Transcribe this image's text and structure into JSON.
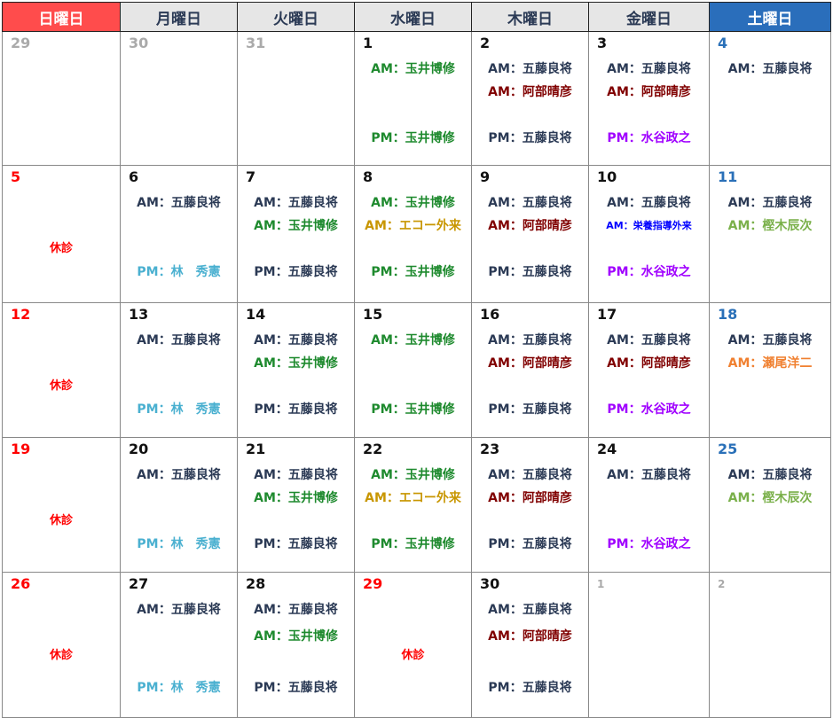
{
  "headers": [
    {
      "label": "日曜日",
      "type": "sun"
    },
    {
      "label": "月曜日",
      "type": ""
    },
    {
      "label": "火曜日",
      "type": ""
    },
    {
      "label": "水曜日",
      "type": ""
    },
    {
      "label": "木曜日",
      "type": ""
    },
    {
      "label": "金曜日",
      "type": ""
    },
    {
      "label": "土曜日",
      "type": "sat"
    }
  ],
  "colors": {
    "navy": "#2b3a55",
    "green": "#1e8a2e",
    "maroon": "#800000",
    "purple": "#a000ff",
    "blue": "#0000ff",
    "olive": "#7ab04a",
    "orange": "#f08030",
    "gold": "#c89600",
    "sky": "#4ab0d0",
    "red": "#ff0000",
    "satblue": "#2a70b8",
    "gray": "#aaaaaa",
    "black": "#111111"
  },
  "weeks": [
    [
      {
        "d": "29",
        "c": "gray"
      },
      {
        "d": "30",
        "c": "gray"
      },
      {
        "d": "31",
        "c": "gray"
      },
      {
        "d": "1",
        "c": "black",
        "l": [
          [
            "AM：玉井博修",
            "green"
          ],
          null,
          [
            "PM：玉井博修",
            "green"
          ]
        ]
      },
      {
        "d": "2",
        "c": "black",
        "l": [
          [
            "AM：五藤良将",
            "navy"
          ],
          [
            "AM：阿部晴彦",
            "maroon"
          ],
          [
            "PM：五藤良将",
            "navy"
          ]
        ]
      },
      {
        "d": "3",
        "c": "black",
        "l": [
          [
            "AM：五藤良将",
            "navy"
          ],
          [
            "AM：阿部晴彦",
            "maroon"
          ],
          [
            "PM：水谷政之",
            "purple"
          ]
        ]
      },
      {
        "d": "4",
        "c": "satblue",
        "l": [
          [
            "AM：五藤良将",
            "navy"
          ],
          null,
          null
        ]
      }
    ],
    [
      {
        "d": "5",
        "c": "red",
        "closed": "休診"
      },
      {
        "d": "6",
        "c": "black",
        "l": [
          [
            "AM：五藤良将",
            "navy"
          ],
          null,
          [
            "PM：林　秀憲",
            "sky"
          ]
        ]
      },
      {
        "d": "7",
        "c": "black",
        "l": [
          [
            "AM：五藤良将",
            "navy"
          ],
          [
            "AM：玉井博修",
            "green"
          ],
          [
            "PM：五藤良将",
            "navy"
          ]
        ]
      },
      {
        "d": "8",
        "c": "black",
        "l": [
          [
            "AM：玉井博修",
            "green"
          ],
          [
            "AM：エコー外来",
            "gold"
          ],
          [
            "PM：玉井博修",
            "green"
          ]
        ]
      },
      {
        "d": "9",
        "c": "black",
        "l": [
          [
            "AM：五藤良将",
            "navy"
          ],
          [
            "AM：阿部晴彦",
            "maroon"
          ],
          [
            "PM：五藤良将",
            "navy"
          ]
        ]
      },
      {
        "d": "10",
        "c": "black",
        "l": [
          [
            "AM：五藤良将",
            "navy"
          ],
          [
            "AM：栄養指導外来",
            "blue",
            1
          ],
          [
            "PM：水谷政之",
            "purple"
          ]
        ]
      },
      {
        "d": "11",
        "c": "satblue",
        "l": [
          [
            "AM：五藤良将",
            "navy"
          ],
          [
            "AM：樫木辰次",
            "olive"
          ],
          null
        ]
      }
    ],
    [
      {
        "d": "12",
        "c": "red",
        "closed": "休診"
      },
      {
        "d": "13",
        "c": "black",
        "l": [
          [
            "AM：五藤良将",
            "navy"
          ],
          null,
          [
            "PM：林　秀憲",
            "sky"
          ]
        ]
      },
      {
        "d": "14",
        "c": "black",
        "l": [
          [
            "AM：五藤良将",
            "navy"
          ],
          [
            "AM：玉井博修",
            "green"
          ],
          [
            "PM：五藤良将",
            "navy"
          ]
        ]
      },
      {
        "d": "15",
        "c": "black",
        "l": [
          [
            "AM：玉井博修",
            "green"
          ],
          null,
          [
            "PM：玉井博修",
            "green"
          ]
        ]
      },
      {
        "d": "16",
        "c": "black",
        "l": [
          [
            "AM：五藤良将",
            "navy"
          ],
          [
            "AM：阿部晴彦",
            "maroon"
          ],
          [
            "PM：五藤良将",
            "navy"
          ]
        ]
      },
      {
        "d": "17",
        "c": "black",
        "l": [
          [
            "AM：五藤良将",
            "navy"
          ],
          [
            "AM：阿部晴彦",
            "maroon"
          ],
          [
            "PM：水谷政之",
            "purple"
          ]
        ]
      },
      {
        "d": "18",
        "c": "satblue",
        "l": [
          [
            "AM：五藤良将",
            "navy"
          ],
          [
            "AM：瀬尾洋二",
            "orange"
          ],
          null
        ]
      }
    ],
    [
      {
        "d": "19",
        "c": "red",
        "closed": "休診"
      },
      {
        "d": "20",
        "c": "black",
        "l": [
          [
            "AM：五藤良将",
            "navy"
          ],
          null,
          [
            "PM：林　秀憲",
            "sky"
          ]
        ]
      },
      {
        "d": "21",
        "c": "black",
        "l": [
          [
            "AM：五藤良将",
            "navy"
          ],
          [
            "AM：玉井博修",
            "green"
          ],
          [
            "PM：五藤良将",
            "navy"
          ]
        ]
      },
      {
        "d": "22",
        "c": "black",
        "l": [
          [
            "AM：玉井博修",
            "green"
          ],
          [
            "AM：エコー外来",
            "gold"
          ],
          [
            "PM：玉井博修",
            "green"
          ]
        ]
      },
      {
        "d": "23",
        "c": "black",
        "l": [
          [
            "AM：五藤良将",
            "navy"
          ],
          [
            "AM：阿部晴彦",
            "maroon"
          ],
          [
            "PM：五藤良将",
            "navy"
          ]
        ]
      },
      {
        "d": "24",
        "c": "black",
        "l": [
          [
            "AM：五藤良将",
            "navy"
          ],
          null,
          [
            "PM：水谷政之",
            "purple"
          ]
        ]
      },
      {
        "d": "25",
        "c": "satblue",
        "l": [
          [
            "AM：五藤良将",
            "navy"
          ],
          [
            "AM：樫木辰次",
            "olive"
          ],
          null
        ]
      }
    ],
    [
      {
        "d": "26",
        "c": "red",
        "closed": "休診"
      },
      {
        "d": "27",
        "c": "black",
        "l": [
          [
            "AM：五藤良将",
            "navy"
          ],
          null,
          [
            "PM：林　秀憲",
            "sky"
          ]
        ]
      },
      {
        "d": "28",
        "c": "black",
        "l": [
          [
            "AM：五藤良将",
            "navy"
          ],
          [
            "AM：玉井博修",
            "green"
          ],
          [
            "PM：五藤良将",
            "navy"
          ]
        ]
      },
      {
        "d": "29",
        "c": "red",
        "closed": "休診"
      },
      {
        "d": "30",
        "c": "black",
        "l": [
          [
            "AM：五藤良将",
            "navy"
          ],
          [
            "AM：阿部晴彦",
            "maroon"
          ],
          [
            "PM：五藤良将",
            "navy"
          ]
        ]
      },
      {
        "d": "1",
        "c": "gray",
        "small": true
      },
      {
        "d": "2",
        "c": "gray",
        "small": true
      }
    ]
  ]
}
